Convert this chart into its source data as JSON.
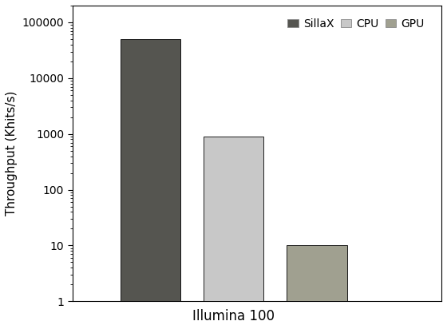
{
  "title": "",
  "xlabel": "Illumina 100",
  "ylabel": "Throughput (Khits/s)",
  "categories": [
    "SillaX",
    "CPU",
    "GPU"
  ],
  "values": [
    50000,
    900,
    10
  ],
  "bar_colors": [
    "#555550",
    "#c8c8c8",
    "#a0a090"
  ],
  "bar_width": 0.13,
  "bar_positions": [
    0.22,
    0.4,
    0.58
  ],
  "ylim_log": [
    1,
    200000
  ],
  "yticks": [
    1,
    10,
    100,
    1000,
    10000,
    100000
  ],
  "ytick_labels": [
    "1",
    "10",
    "100",
    "1000",
    "10000",
    "100000"
  ],
  "legend_labels": [
    "SillaX",
    "CPU",
    "GPU"
  ],
  "legend_colors": [
    "#555550",
    "#c8c8c8",
    "#a0a090"
  ],
  "xlim": [
    0.05,
    0.85
  ],
  "edgecolor": "#000000",
  "background_color": "#ffffff",
  "ylabel_fontsize": 11,
  "xlabel_fontsize": 12,
  "tick_fontsize": 10,
  "legend_fontsize": 10
}
